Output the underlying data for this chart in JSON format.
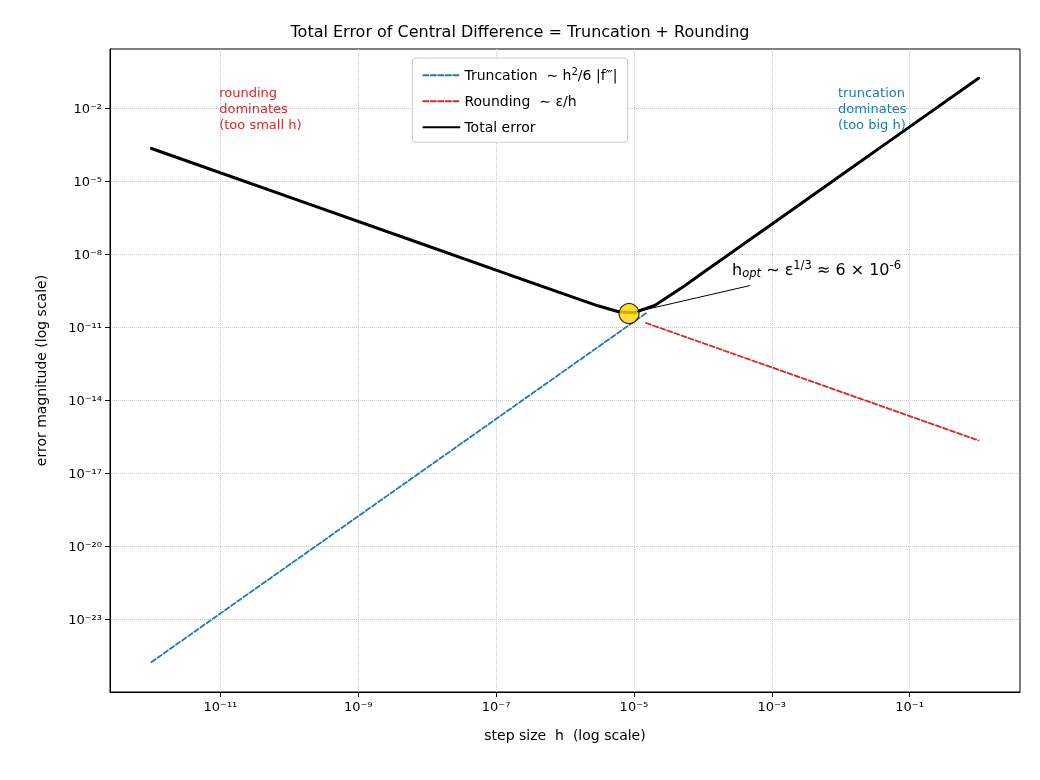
{
  "chart_data": {
    "type": "line",
    "title": "Total Error of Central Difference = Truncation + Rounding",
    "xlabel": "step size  h  (log scale)",
    "ylabel": "error magnitude (log scale)",
    "log": "xy",
    "grid": true,
    "legend": "top",
    "line_style": "solid",
    "marker": "none",
    "xlim": [
      2.5e-13,
      4
    ],
    "ylim": [
      1e-26,
      2.7
    ],
    "xticks": [
      {
        "value": 1e-11,
        "label": "10⁻¹¹"
      },
      {
        "value": 1e-09,
        "label": "10⁻⁹"
      },
      {
        "value": 1e-07,
        "label": "10⁻⁷"
      },
      {
        "value": 1e-05,
        "label": "10⁻⁵"
      },
      {
        "value": 0.001,
        "label": "10⁻³"
      },
      {
        "value": 0.1,
        "label": "10⁻¹"
      }
    ],
    "yticks": [
      {
        "value": 1e-23,
        "label": "10⁻²³"
      },
      {
        "value": 1e-20,
        "label": "10⁻²⁰"
      },
      {
        "value": 1e-17,
        "label": "10⁻¹⁷"
      },
      {
        "value": 1e-14,
        "label": "10⁻¹⁴"
      },
      {
        "value": 1e-11,
        "label": "10⁻¹¹"
      },
      {
        "value": 1e-08,
        "label": "10⁻⁸"
      },
      {
        "value": 1e-05,
        "label": "10⁻⁵"
      },
      {
        "value": 0.01,
        "label": "10⁻²"
      }
    ],
    "series": [
      {
        "name": "Truncation  ∼ h$^{2}$/6 |f‴|",
        "color": "#1f77b4",
        "line_style": "dashed",
        "x": [
          1e-12,
          1.5e-05
        ],
        "values": [
          1.7e-25,
          3.75e-11
        ]
      },
      {
        "name": "Rounding  ∼ ε/h",
        "color": "#d62728",
        "line_style": "dashed",
        "x": [
          1.5e-05,
          1
        ],
        "values": [
          1.47e-11,
          2.2e-16
        ]
      },
      {
        "name": "Total error",
        "color": "#000000",
        "x": [
          1e-12,
          1e-10,
          1e-08,
          1e-07,
          1e-06,
          3e-06,
          6e-06,
          1e-05,
          2e-05,
          5e-05,
          0.0001,
          0.001,
          0.01,
          0.1,
          1
        ],
        "values": [
          0.00022,
          2.2e-06,
          2.2e-08,
          2.2e-09,
          2.2e-10,
          7.5e-11,
          4.3e-11,
          3.9e-11,
          7.8e-11,
          4.2e-10,
          1.7e-09,
          1.7e-07,
          1.7e-05,
          0.0017,
          0.17
        ]
      },
      {
        "type": "scatter",
        "color": "#ffd700",
        "marker": "circle",
        "x": [
          8.5e-06
        ],
        "values": [
          3.6e-11
        ]
      }
    ],
    "annotations": [
      "rounding\ndominates\n(too small h)",
      "truncation\ndominates\n(too big h)",
      {
        "text": "h$_{opt}$ ∼ ε$^{1/3}$ ≈ 6 × 10$^{-6}$",
        "x": 8.5e-06,
        "y": 3.6e-11
      }
    ]
  }
}
